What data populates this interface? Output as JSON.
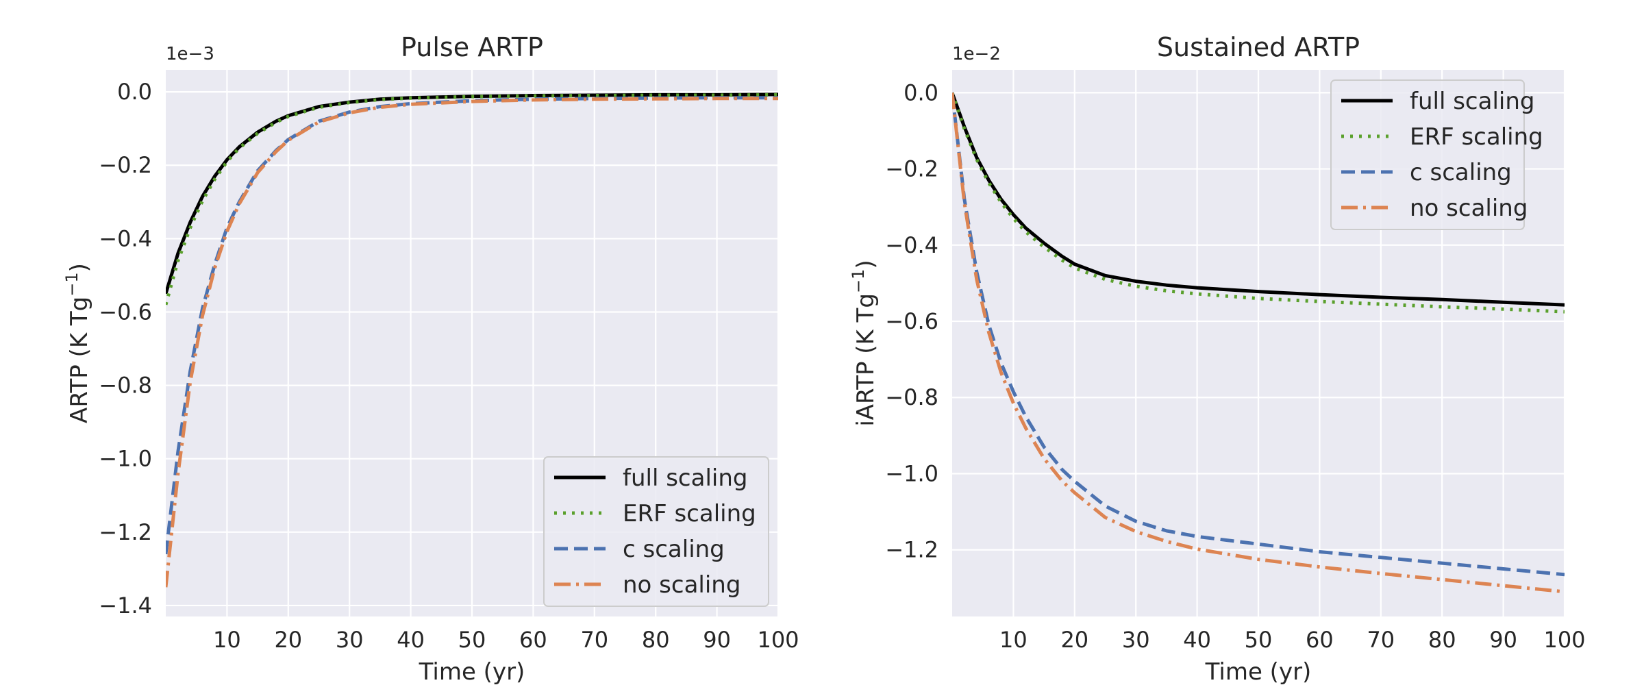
{
  "chart_data": [
    {
      "type": "line",
      "title": "Pulse ARTP",
      "xlabel": "Time (yr)",
      "ylabel": "ARTP (K Tg",
      "ylabel_sup": "−1",
      "ylabel_close": ")",
      "offset_text": "1e−3",
      "xlim": [
        0,
        100
      ],
      "ylim": [
        -1.43,
        0.06
      ],
      "xticks": [
        10,
        20,
        30,
        40,
        50,
        60,
        70,
        80,
        90,
        100
      ],
      "xtick_labels": [
        "10",
        "20",
        "30",
        "40",
        "50",
        "60",
        "70",
        "80",
        "90",
        "100"
      ],
      "yticks": [
        0.0,
        -0.2,
        -0.4,
        -0.6,
        -0.8,
        -1.0,
        -1.2,
        -1.4
      ],
      "ytick_labels": [
        "0.0",
        "−0.2",
        "−0.4",
        "−0.6",
        "−0.8",
        "−1.0",
        "−1.2",
        "−1.4"
      ],
      "grid": true,
      "legend_position": "lower-right",
      "x": [
        0,
        2,
        4,
        6,
        8,
        10,
        12,
        15,
        18,
        20,
        25,
        30,
        35,
        40,
        50,
        60,
        70,
        80,
        90,
        100
      ],
      "series": [
        {
          "name": "full scaling",
          "color": "#000000",
          "style": "solid",
          "values": [
            -0.55,
            -0.44,
            -0.355,
            -0.285,
            -0.23,
            -0.185,
            -0.15,
            -0.11,
            -0.08,
            -0.065,
            -0.04,
            -0.028,
            -0.02,
            -0.016,
            -0.012,
            -0.01,
            -0.009,
            -0.008,
            -0.008,
            -0.007
          ]
        },
        {
          "name": "ERF scaling",
          "color": "#5aa02c",
          "style": "dotted",
          "values": [
            -0.58,
            -0.46,
            -0.37,
            -0.297,
            -0.238,
            -0.19,
            -0.153,
            -0.113,
            -0.083,
            -0.067,
            -0.042,
            -0.029,
            -0.021,
            -0.017,
            -0.013,
            -0.011,
            -0.01,
            -0.009,
            -0.009,
            -0.008
          ]
        },
        {
          "name": "c scaling",
          "color": "#4c72b0",
          "style": "dashed",
          "values": [
            -1.26,
            -0.98,
            -0.76,
            -0.59,
            -0.47,
            -0.37,
            -0.3,
            -0.215,
            -0.16,
            -0.13,
            -0.08,
            -0.055,
            -0.04,
            -0.032,
            -0.024,
            -0.02,
            -0.018,
            -0.017,
            -0.016,
            -0.016
          ]
        },
        {
          "name": "no scaling",
          "color": "#dd8452",
          "style": "dashdot",
          "values": [
            -1.35,
            -1.04,
            -0.79,
            -0.61,
            -0.48,
            -0.38,
            -0.305,
            -0.22,
            -0.163,
            -0.132,
            -0.082,
            -0.057,
            -0.042,
            -0.034,
            -0.026,
            -0.022,
            -0.02,
            -0.019,
            -0.018,
            -0.018
          ]
        }
      ]
    },
    {
      "type": "line",
      "title": "Sustained ARTP",
      "xlabel": "Time (yr)",
      "ylabel": "iARTP (K Tg",
      "ylabel_sup": "−1",
      "ylabel_close": ")",
      "offset_text": "1e−2",
      "xlim": [
        0,
        100
      ],
      "ylim": [
        -1.375,
        0.06
      ],
      "xticks": [
        10,
        20,
        30,
        40,
        50,
        60,
        70,
        80,
        90,
        100
      ],
      "xtick_labels": [
        "10",
        "20",
        "30",
        "40",
        "50",
        "60",
        "70",
        "80",
        "90",
        "100"
      ],
      "yticks": [
        0.0,
        -0.2,
        -0.4,
        -0.6,
        -0.8,
        -1.0,
        -1.2
      ],
      "ytick_labels": [
        "0.0",
        "−0.2",
        "−0.4",
        "−0.6",
        "−0.8",
        "−1.0",
        "−1.2"
      ],
      "grid": true,
      "legend_position": "upper-right",
      "x": [
        0,
        2,
        4,
        6,
        8,
        10,
        12,
        15,
        18,
        20,
        25,
        30,
        35,
        40,
        50,
        60,
        70,
        80,
        90,
        100
      ],
      "series": [
        {
          "name": "full scaling",
          "color": "#000000",
          "style": "solid",
          "values": [
            0.0,
            -0.09,
            -0.17,
            -0.23,
            -0.28,
            -0.32,
            -0.355,
            -0.395,
            -0.43,
            -0.45,
            -0.48,
            -0.495,
            -0.505,
            -0.512,
            -0.522,
            -0.53,
            -0.537,
            -0.543,
            -0.55,
            -0.557
          ]
        },
        {
          "name": "ERF scaling",
          "color": "#5aa02c",
          "style": "dotted",
          "values": [
            0.0,
            -0.095,
            -0.175,
            -0.237,
            -0.288,
            -0.33,
            -0.365,
            -0.405,
            -0.44,
            -0.46,
            -0.49,
            -0.508,
            -0.52,
            -0.528,
            -0.54,
            -0.548,
            -0.555,
            -0.562,
            -0.568,
            -0.575
          ]
        },
        {
          "name": "c scaling",
          "color": "#4c72b0",
          "style": "dashed",
          "values": [
            0.0,
            -0.28,
            -0.47,
            -0.61,
            -0.71,
            -0.785,
            -0.85,
            -0.93,
            -0.99,
            -1.02,
            -1.085,
            -1.125,
            -1.15,
            -1.165,
            -1.185,
            -1.205,
            -1.22,
            -1.235,
            -1.25,
            -1.265
          ]
        },
        {
          "name": "no scaling",
          "color": "#dd8452",
          "style": "dashdot",
          "values": [
            0.0,
            -0.29,
            -0.49,
            -0.63,
            -0.735,
            -0.815,
            -0.88,
            -0.96,
            -1.02,
            -1.05,
            -1.115,
            -1.152,
            -1.178,
            -1.198,
            -1.225,
            -1.245,
            -1.262,
            -1.278,
            -1.294,
            -1.31
          ]
        }
      ]
    }
  ]
}
